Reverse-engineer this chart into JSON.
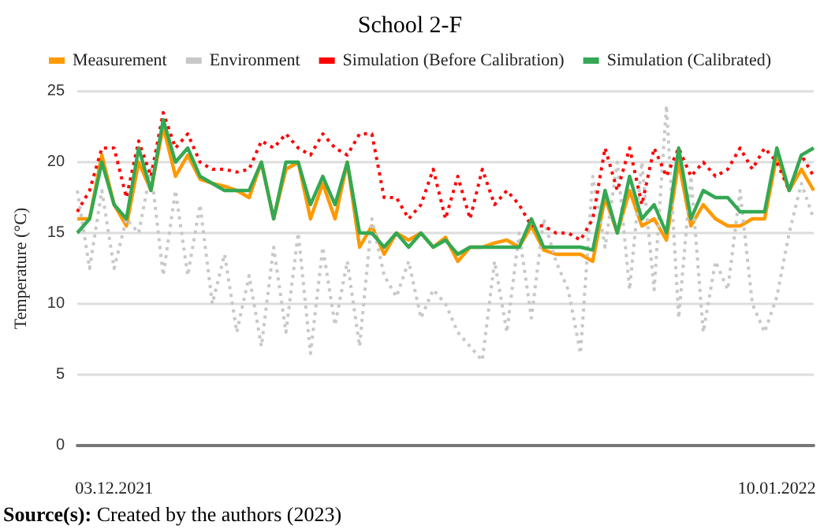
{
  "chart_data": {
    "type": "line",
    "title": "School 2-F",
    "ylabel": "Temperature (°C)",
    "categories": [
      null,
      null,
      null,
      "03.12.2021",
      null,
      null,
      null,
      null,
      null,
      null,
      null,
      null,
      null,
      null,
      null,
      null,
      null,
      null,
      null,
      null,
      null,
      null,
      null,
      null,
      null,
      null,
      null,
      null,
      null,
      null,
      null,
      null,
      null,
      null,
      null,
      null,
      null,
      null,
      null,
      null,
      null,
      null,
      null,
      null,
      null,
      null,
      null,
      null,
      null,
      null,
      null,
      null,
      null,
      null,
      null,
      null,
      null,
      "10.01.2022",
      null,
      null,
      null
    ],
    "series": [
      {
        "name": "Measurement",
        "color": "#ff9900",
        "line_style": "solid",
        "values": [
          16,
          16,
          20.5,
          17,
          15.5,
          20,
          18,
          22.5,
          19,
          20.5,
          18.8,
          18.5,
          18.3,
          18,
          17.5,
          20,
          16,
          19.5,
          20,
          16,
          18.5,
          16,
          20,
          14,
          15.5,
          13.5,
          15,
          14.5,
          15,
          14,
          14.7,
          13,
          14,
          14,
          14.3,
          14.5,
          14,
          15.5,
          13.8,
          13.5,
          13.5,
          13.5,
          13,
          17.5,
          15,
          18,
          15.5,
          16,
          14.5,
          20,
          15.5,
          17,
          16,
          15.5,
          15.5,
          16,
          16,
          20.5,
          18,
          19.5,
          18
        ]
      },
      {
        "name": "Environment",
        "color": "#c8c8c8",
        "line_style": "dotted",
        "values": [
          18,
          12.5,
          18,
          12.5,
          16,
          15,
          19.5,
          12,
          18,
          12,
          17,
          10,
          13.5,
          8,
          12,
          7,
          14,
          8,
          15,
          6.5,
          14,
          8.5,
          13,
          7,
          16,
          12,
          10.5,
          13,
          9,
          11,
          10,
          8,
          7,
          6,
          13,
          8,
          15,
          9,
          16,
          13,
          11,
          6.5,
          19,
          14,
          20,
          11,
          20,
          11,
          24,
          9,
          19,
          8,
          13,
          11,
          18,
          10,
          8,
          10.5,
          15,
          18.5,
          16
        ]
      },
      {
        "name": "Simulation (Before Calibration)",
        "color": "#ff0000",
        "line_style": "dotted",
        "values": [
          16.5,
          18,
          21,
          21,
          17.5,
          21.5,
          19,
          23.5,
          21,
          22,
          20,
          19.5,
          19.5,
          19.3,
          19.5,
          21.5,
          21,
          22,
          21,
          20.5,
          22,
          21,
          20.5,
          22,
          22,
          17.5,
          17.5,
          16,
          17,
          19.5,
          16,
          19,
          16,
          19.5,
          17,
          18,
          17,
          15.5,
          15.5,
          15,
          15,
          14.5,
          16,
          21,
          18,
          21,
          17,
          21,
          19,
          21,
          19,
          20,
          19,
          19.5,
          21,
          19.5,
          21,
          20,
          18,
          20.5,
          19
        ]
      },
      {
        "name": "Simulation (Calibrated)",
        "color": "#34a853",
        "line_style": "solid",
        "values": [
          15,
          16,
          20,
          17,
          16,
          21,
          18,
          23,
          20,
          21,
          19,
          18.5,
          18,
          18,
          18,
          20,
          16,
          20,
          20,
          17,
          19,
          17,
          20,
          15,
          15,
          14,
          15,
          14,
          15,
          14,
          14.5,
          13.5,
          14,
          14,
          14,
          14,
          14,
          16,
          14,
          14,
          14,
          14,
          13.8,
          18,
          15,
          19,
          16,
          17,
          15,
          21,
          16,
          18,
          17.5,
          17.5,
          16.5,
          16.5,
          16.5,
          21,
          18,
          20.5,
          21
        ]
      }
    ],
    "ylim": [
      0,
      25
    ],
    "yticks": [
      0,
      5,
      10,
      15,
      20,
      25
    ],
    "grid": "y",
    "legend": "top",
    "marker": "none",
    "annotations": [
      "Source(s): Created by the authors (2023)"
    ]
  }
}
